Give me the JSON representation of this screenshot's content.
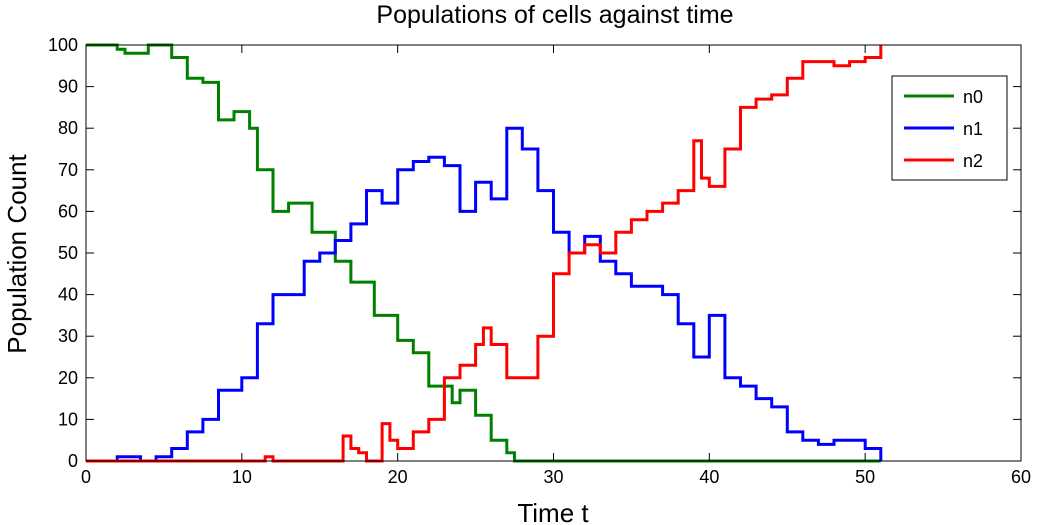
{
  "chart_data": {
    "type": "line",
    "title": "Populations of cells against time",
    "xlabel": "Time t",
    "ylabel": "Population Count",
    "xlim": [
      0,
      60
    ],
    "ylim": [
      0,
      100
    ],
    "xticks": [
      "0",
      "10",
      "20",
      "30",
      "40",
      "50",
      "60"
    ],
    "yticks": [
      "0",
      "10",
      "20",
      "30",
      "40",
      "50",
      "60",
      "70",
      "80",
      "90",
      "100"
    ],
    "grid": false,
    "legend_position": "top-right",
    "series": [
      {
        "name": "n0",
        "color": "#008000",
        "x": [
          0,
          2,
          2.5,
          4,
          5.5,
          6.5,
          7.5,
          8.5,
          9.5,
          10.5,
          11,
          12,
          13,
          14.5,
          16,
          17,
          18.5,
          20,
          21,
          22,
          23.5,
          24,
          25,
          26,
          27,
          27.5,
          51
        ],
        "y": [
          100,
          99,
          98,
          100,
          97,
          92,
          91,
          82,
          84,
          80,
          70,
          60,
          62,
          55,
          48,
          43,
          35,
          29,
          26,
          18,
          14,
          17,
          11,
          5,
          2,
          0,
          0
        ]
      },
      {
        "name": "n1",
        "color": "#0000ff",
        "x": [
          0,
          2,
          3.5,
          4.5,
          5.5,
          6.5,
          7.5,
          8.5,
          9,
          10,
          11,
          12,
          13,
          14,
          15,
          16,
          17,
          18,
          19,
          20,
          21,
          22,
          23,
          24,
          25,
          26,
          27,
          28,
          29,
          30,
          31,
          32,
          33,
          34,
          35,
          36,
          37,
          38,
          39,
          40,
          41,
          42,
          43,
          44,
          45,
          46,
          47,
          48,
          49,
          50,
          51
        ],
        "y": [
          0,
          1,
          0,
          1,
          3,
          7,
          10,
          17,
          17,
          20,
          33,
          40,
          40,
          48,
          50,
          53,
          57,
          65,
          62,
          70,
          72,
          73,
          71,
          60,
          67,
          63,
          80,
          75,
          65,
          55,
          50,
          54,
          48,
          45,
          42,
          42,
          40,
          33,
          25,
          35,
          20,
          18,
          15,
          13,
          7,
          5,
          4,
          5,
          5,
          3,
          0
        ]
      },
      {
        "name": "n2",
        "color": "#ff0000",
        "x": [
          0,
          11,
          11.5,
          12,
          16,
          16.5,
          17,
          17.5,
          18,
          19,
          19.5,
          20,
          21,
          22,
          23,
          24,
          25,
          25.5,
          26,
          27,
          28,
          29,
          30,
          31,
          32,
          33,
          34,
          35,
          36,
          37,
          38,
          39,
          39.5,
          40,
          41,
          42,
          43,
          44,
          45,
          46,
          47,
          48,
          49,
          50,
          51
        ],
        "y": [
          0,
          0,
          1,
          0,
          0,
          6,
          3,
          2,
          0,
          9,
          5,
          3,
          7,
          10,
          20,
          23,
          28,
          32,
          28,
          20,
          20,
          30,
          45,
          50,
          52,
          50,
          55,
          58,
          60,
          62,
          65,
          77,
          68,
          66,
          75,
          85,
          87,
          88,
          92,
          96,
          96,
          95,
          96,
          97,
          100
        ]
      }
    ]
  }
}
